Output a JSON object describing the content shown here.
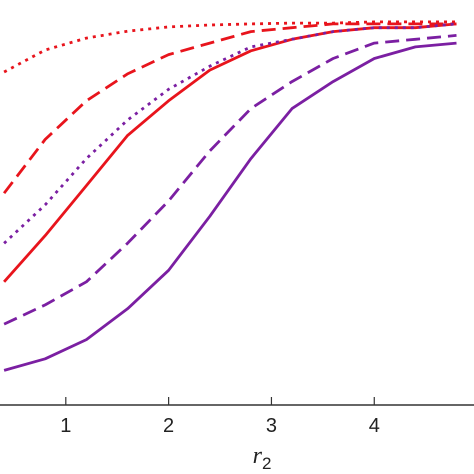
{
  "chart_data": {
    "type": "line",
    "xlabel": "r",
    "xlabel_sub": "2",
    "x": [
      0.4,
      0.8,
      1.2,
      1.6,
      2.0,
      2.4,
      2.8,
      3.2,
      3.6,
      4.0,
      4.4,
      4.8
    ],
    "xlim": [
      0.36,
      4.97
    ],
    "xticks": [
      1,
      2,
      3,
      4
    ],
    "ylim": [
      0,
      1
    ],
    "series": [
      {
        "color": "#e8141c",
        "dash": "dotted",
        "values": [
          0.865,
          0.922,
          0.953,
          0.971,
          0.982,
          0.987,
          0.99,
          0.992,
          0.992,
          0.995,
          0.995,
          0.995
        ]
      },
      {
        "color": "#e8141c",
        "dash": "dashed",
        "values": [
          0.55,
          0.69,
          0.79,
          0.86,
          0.91,
          0.94,
          0.97,
          0.98,
          0.99,
          0.99,
          0.99,
          0.99
        ]
      },
      {
        "color": "#e8141c",
        "dash": "solid",
        "values": [
          0.32,
          0.44,
          0.57,
          0.7,
          0.79,
          0.87,
          0.92,
          0.95,
          0.97,
          0.98,
          0.98,
          0.99
        ]
      },
      {
        "color": "#7b1fa2",
        "dash": "dotted",
        "values": [
          0.42,
          0.52,
          0.64,
          0.74,
          0.82,
          0.88,
          0.93,
          0.95,
          0.97,
          0.98,
          0.98,
          0.99
        ]
      },
      {
        "color": "#7b1fa2",
        "dash": "dashed",
        "values": [
          0.21,
          0.26,
          0.32,
          0.42,
          0.53,
          0.66,
          0.77,
          0.84,
          0.9,
          0.94,
          0.95,
          0.96
        ]
      },
      {
        "color": "#7b1fa2",
        "dash": "solid",
        "values": [
          0.09,
          0.12,
          0.17,
          0.25,
          0.35,
          0.49,
          0.64,
          0.77,
          0.84,
          0.9,
          0.93,
          0.94
        ]
      }
    ]
  }
}
